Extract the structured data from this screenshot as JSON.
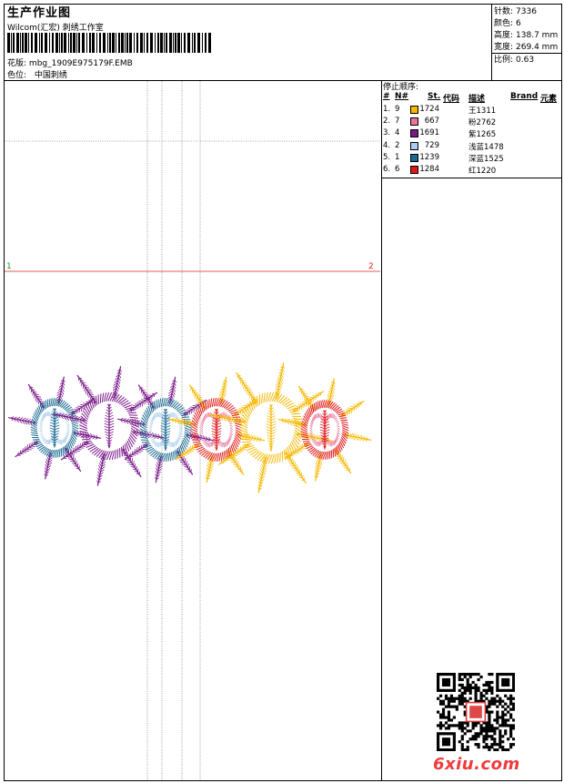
{
  "header": {
    "title": "生产作业图",
    "company": "Wilcom(汇宏) 刺绣工作室",
    "design_label": "花版:",
    "design_file": "mbg_1909E975179F.EMB",
    "color_label": "色位:",
    "color_value": "中国刺绣"
  },
  "stats": [
    {
      "label": "针数:",
      "value": "7336"
    },
    {
      "label": "颜色:",
      "value": "6"
    },
    {
      "label": "高度:",
      "value": "138.7 mm"
    },
    {
      "label": "宽度:",
      "value": "269.4 mm"
    },
    {
      "label": "比例:",
      "value": "0.63"
    }
  ],
  "stop_sequence": {
    "title": "停止顺序:",
    "headers": [
      "#",
      "N#",
      "St.",
      "代码",
      "描述",
      "Brand",
      "元素"
    ],
    "rows": [
      {
        "index": "1.",
        "needle": "9",
        "color": "#f5b800",
        "code": "1724",
        "desc": "王1311"
      },
      {
        "index": "2.",
        "needle": "7",
        "color": "#e8759a",
        "code": "667",
        "desc": "粉2762"
      },
      {
        "index": "3.",
        "needle": "4",
        "color": "#7a1a88",
        "code": "1691",
        "desc": "紫1265"
      },
      {
        "index": "4.",
        "needle": "2",
        "color": "#a8cdee",
        "code": "729",
        "desc": "浅蓝1478"
      },
      {
        "index": "5.",
        "needle": "1",
        "color": "#1a6a90",
        "code": "1239",
        "desc": "深蓝1525"
      },
      {
        "index": "6.",
        "needle": "6",
        "color": "#e01818",
        "code": "1284",
        "desc": "红1220"
      }
    ]
  },
  "markers": {
    "start": "1",
    "end": "2"
  },
  "logo_text": "6xiu.com"
}
